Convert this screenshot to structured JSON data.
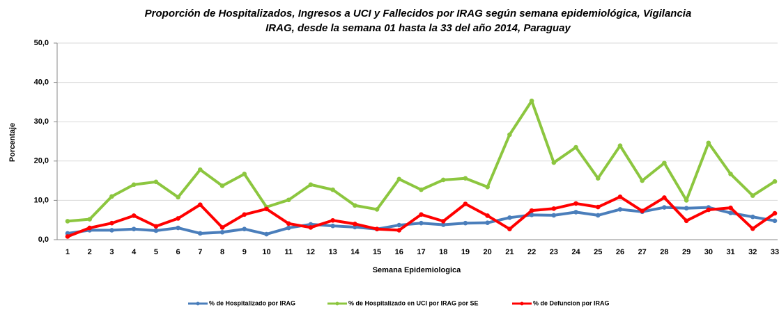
{
  "chart_data": {
    "type": "line",
    "title": [
      "Proporción de Hospitalizados, Ingresos a UCI y Fallecidos por IRAG según semana epidemiológica, Vigilancia",
      "IRAG, desde la semana 01 hasta la 33 del año 2014, Paraguay"
    ],
    "x_label": "Semana Epidemiologica",
    "y_label": "Porcentaje",
    "categories": [
      "1",
      "2",
      "3",
      "4",
      "5",
      "6",
      "7",
      "8",
      "9",
      "10",
      "11",
      "12",
      "13",
      "14",
      "15",
      "16",
      "17",
      "18",
      "19",
      "20",
      "21",
      "22",
      "23",
      "24",
      "25",
      "26",
      "27",
      "28",
      "29",
      "30",
      "31",
      "32",
      "33"
    ],
    "ylim": [
      0,
      50
    ],
    "yticks": [
      {
        "value": 0,
        "label": "0,0"
      },
      {
        "value": 10,
        "label": "10,0"
      },
      {
        "value": 20,
        "label": "20,0"
      },
      {
        "value": 30,
        "label": "30,0"
      },
      {
        "value": 40,
        "label": "40,0"
      },
      {
        "value": 50,
        "label": "50,0"
      }
    ],
    "grid": true,
    "legend": "bottom",
    "series": [
      {
        "name": "% de Hospitalizado por IRAG",
        "color": "#4a7ebb",
        "values": [
          1.6,
          2.4,
          2.4,
          2.7,
          2.3,
          3,
          1.6,
          1.9,
          2.7,
          1.4,
          3,
          3.9,
          3.5,
          3.2,
          2.7,
          3.7,
          4.2,
          3.8,
          4.2,
          4.3,
          5.6,
          6.3,
          6.2,
          7,
          6.2,
          7.7,
          7.1,
          8.2,
          8,
          8.2,
          6.8,
          5.8,
          4.8
        ]
      },
      {
        "name": "% de Hospitalizado en UCI por IRAG por SE",
        "color": "#8cc63f",
        "values": [
          4.7,
          5.2,
          11,
          14,
          14.7,
          10.8,
          17.8,
          13.7,
          16.7,
          8.3,
          10.1,
          14,
          12.7,
          8.7,
          7.7,
          15.4,
          12.7,
          15.2,
          15.6,
          13.4,
          26.7,
          35.3,
          19.6,
          23.5,
          15.6,
          23.9,
          15,
          19.5,
          10,
          24.6,
          16.7,
          11.2,
          14.8
        ]
      },
      {
        "name": "% de Defuncion por IRAG",
        "color": "#ff0000",
        "values": [
          0.8,
          3,
          4.2,
          6.1,
          3.4,
          5.4,
          8.9,
          3.1,
          6.4,
          7.8,
          4.1,
          3.1,
          4.9,
          4,
          2.7,
          2.4,
          6.4,
          4.7,
          9.1,
          6.1,
          2.7,
          7.4,
          7.9,
          9.2,
          8.3,
          10.9,
          7.3,
          10.7,
          4.8,
          7.6,
          8.1,
          2.8,
          6.7
        ]
      }
    ]
  }
}
